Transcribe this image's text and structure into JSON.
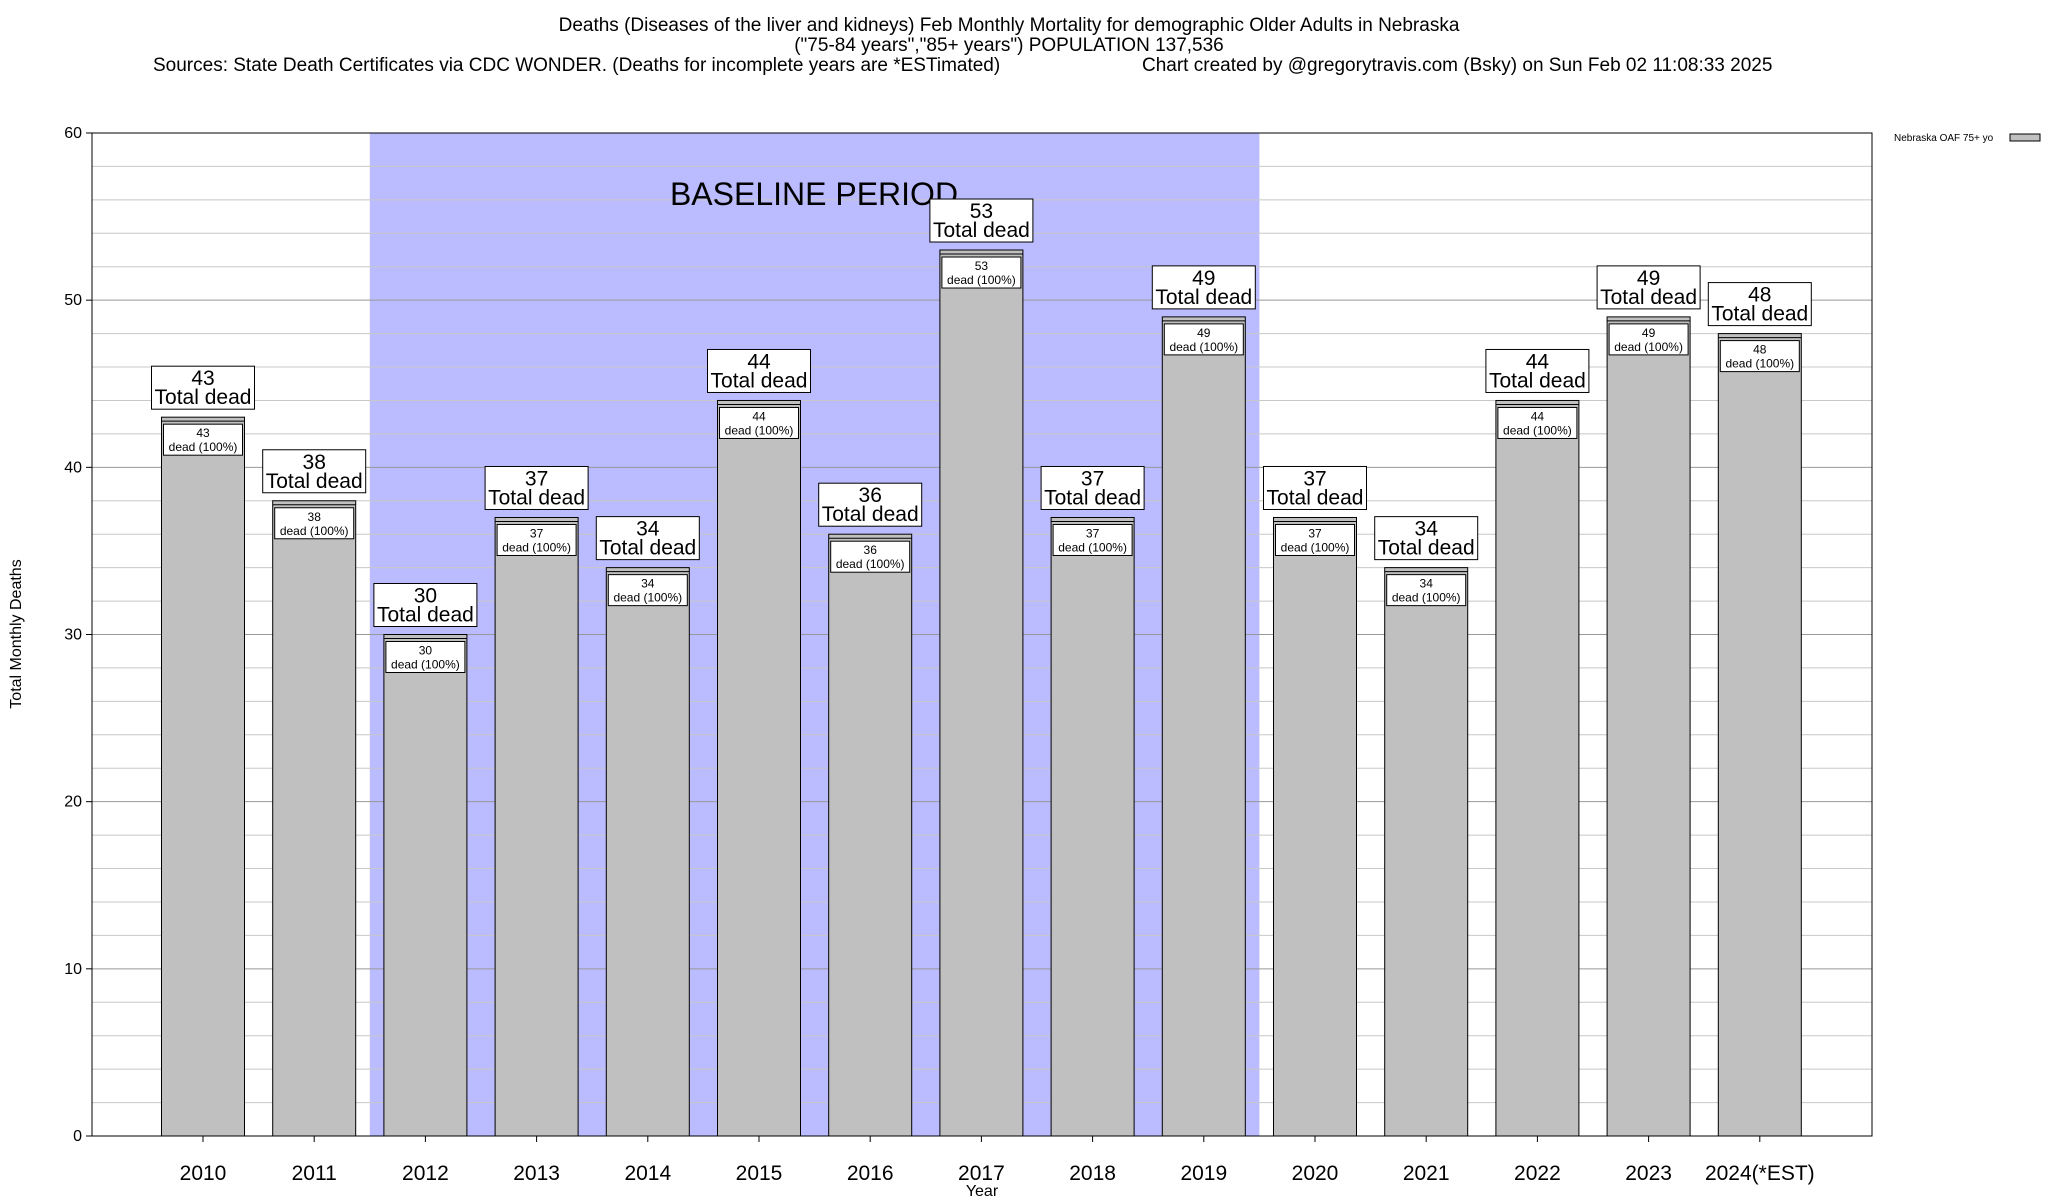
{
  "chart_data": {
    "type": "bar",
    "title_lines": [
      "Deaths (Diseases of the liver and kidneys) Feb Monthly Mortality for demographic Older Adults in Nebraska",
      "(\"75-84 years\",\"85+ years\") POPULATION 137,536"
    ],
    "source_text": "Sources: State Death Certificates via CDC WONDER. (Deaths for incomplete years are *ESTimated)",
    "credit_text": "Chart created by @gregorytravis.com (Bsky) on Sun Feb 02 11:08:33 2025",
    "xlabel": "Year",
    "ylabel": "Total Monthly Deaths",
    "ylim": [
      0,
      60
    ],
    "yticks": [
      0,
      10,
      20,
      30,
      40,
      50,
      60
    ],
    "categories": [
      "2010",
      "2011",
      "2012",
      "2013",
      "2014",
      "2015",
      "2016",
      "2017",
      "2018",
      "2019",
      "2020",
      "2021",
      "2022",
      "2023",
      "2024(*EST)"
    ],
    "series": [
      {
        "name": "Nebraska OAF 75+ yo",
        "values": [
          43,
          38,
          30,
          37,
          34,
          44,
          36,
          53,
          37,
          49,
          37,
          34,
          44,
          49,
          48
        ],
        "color": "#c0c0c0"
      }
    ],
    "bar_top_label_suffix": "Total dead",
    "bar_inner_label_suffix": "dead (100%)",
    "baseline": {
      "label": "BASELINE PERIOD",
      "start_category": "2012",
      "end_category": "2019",
      "color": "#bbbbff"
    },
    "grid": true,
    "legend_position": "top-right"
  }
}
